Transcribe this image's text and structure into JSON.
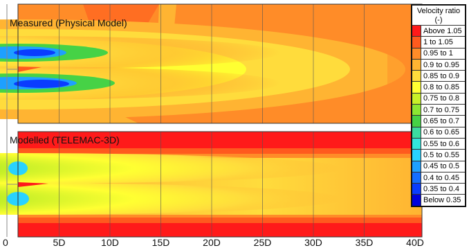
{
  "chart_data": [
    {
      "type": "heatmap",
      "title": "Measured (Physical Model)",
      "panel": "measured"
    },
    {
      "type": "heatmap",
      "title": "Modelled (TELEMAC-3D)",
      "panel": "modelled"
    }
  ],
  "x_ticks": [
    {
      "value": 0,
      "label": "0"
    },
    {
      "value": 5,
      "label": "5D"
    },
    {
      "value": 10,
      "label": "10D"
    },
    {
      "value": 15,
      "label": "15D"
    },
    {
      "value": 20,
      "label": "20D"
    },
    {
      "value": 25,
      "label": "25D"
    },
    {
      "value": 30,
      "label": "30D"
    },
    {
      "value": 35,
      "label": "35D"
    },
    {
      "value": 40,
      "label": "40D"
    }
  ],
  "xlim": [
    0,
    40
  ],
  "legend": {
    "title": "Velocity ratio",
    "unit": "(-)",
    "placement": "right",
    "items": [
      {
        "label": "Above 1.05",
        "color": "#ff1a1a"
      },
      {
        "label": "1 to 1.05",
        "color": "#ff5a1e"
      },
      {
        "label": "0.95 to 1",
        "color": "#ff8c28"
      },
      {
        "label": "0.9 to 0.95",
        "color": "#ffb432"
      },
      {
        "label": "0.85 to 0.9",
        "color": "#ffdc3c"
      },
      {
        "label": "0.8 to 0.85",
        "color": "#ffff32"
      },
      {
        "label": "0.75 to 0.8",
        "color": "#c8f028"
      },
      {
        "label": "0.7 to 0.75",
        "color": "#8ce632"
      },
      {
        "label": "0.65 to 0.7",
        "color": "#46d246"
      },
      {
        "label": "0.6 to 0.65",
        "color": "#3cdca0"
      },
      {
        "label": "0.55 to 0.6",
        "color": "#32e6dc"
      },
      {
        "label": "0.5 to 0.55",
        "color": "#28d2ff"
      },
      {
        "label": "0.45 to 0.5",
        "color": "#1ea0ff"
      },
      {
        "label": "0.4 to 0.45",
        "color": "#146eff"
      },
      {
        "label": "0.35 to 0.4",
        "color": "#0a3cff"
      },
      {
        "label": "Below 0.35",
        "color": "#0000dc"
      }
    ]
  }
}
